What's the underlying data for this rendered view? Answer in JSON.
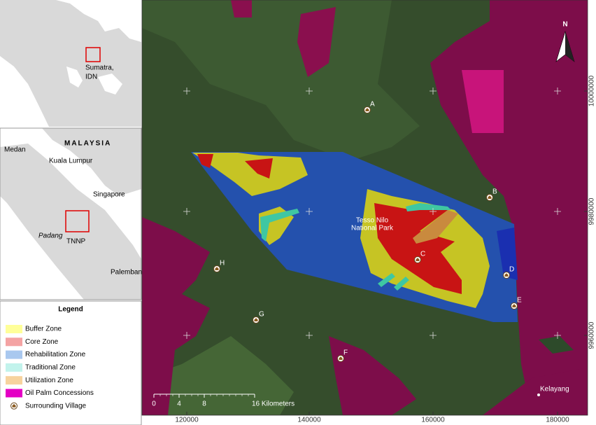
{
  "insets": {
    "overview": {
      "label_lines": [
        "Sumatra,",
        "IDN"
      ]
    },
    "region": {
      "labels": [
        "Medan",
        "MALAYSIA",
        "Kuala Lumpur",
        "Singapore",
        "Padang",
        "Palembang"
      ],
      "site": "TNNP"
    }
  },
  "legend": {
    "title": "Legend",
    "items": [
      {
        "label": "Buffer Zone",
        "color": "#ffff99"
      },
      {
        "label": "Core Zone",
        "color": "#f4a3a3"
      },
      {
        "label": "Rehabilitation Zone",
        "color": "#a9c8ef"
      },
      {
        "label": "Traditional Zone",
        "color": "#c2f3ec"
      },
      {
        "label": "Utilization Zone",
        "color": "#f7d39e"
      },
      {
        "label": "Oil Palm Concessions",
        "color": "#e400c4"
      },
      {
        "label": "Surrounding Village"
      }
    ]
  },
  "map": {
    "north": "N",
    "park": [
      "Tesso Nilo",
      "National Park"
    ],
    "villages": [
      "A",
      "B",
      "C",
      "D",
      "E",
      "F",
      "G",
      "H"
    ],
    "town": "Kelayang",
    "scale": {
      "ticks": [
        0,
        4,
        8
      ],
      "end": "16 Kilometers"
    },
    "x_labels": [
      120000,
      140000,
      160000,
      180000
    ],
    "y_labels": [
      10000000,
      9980000,
      9960000
    ]
  }
}
